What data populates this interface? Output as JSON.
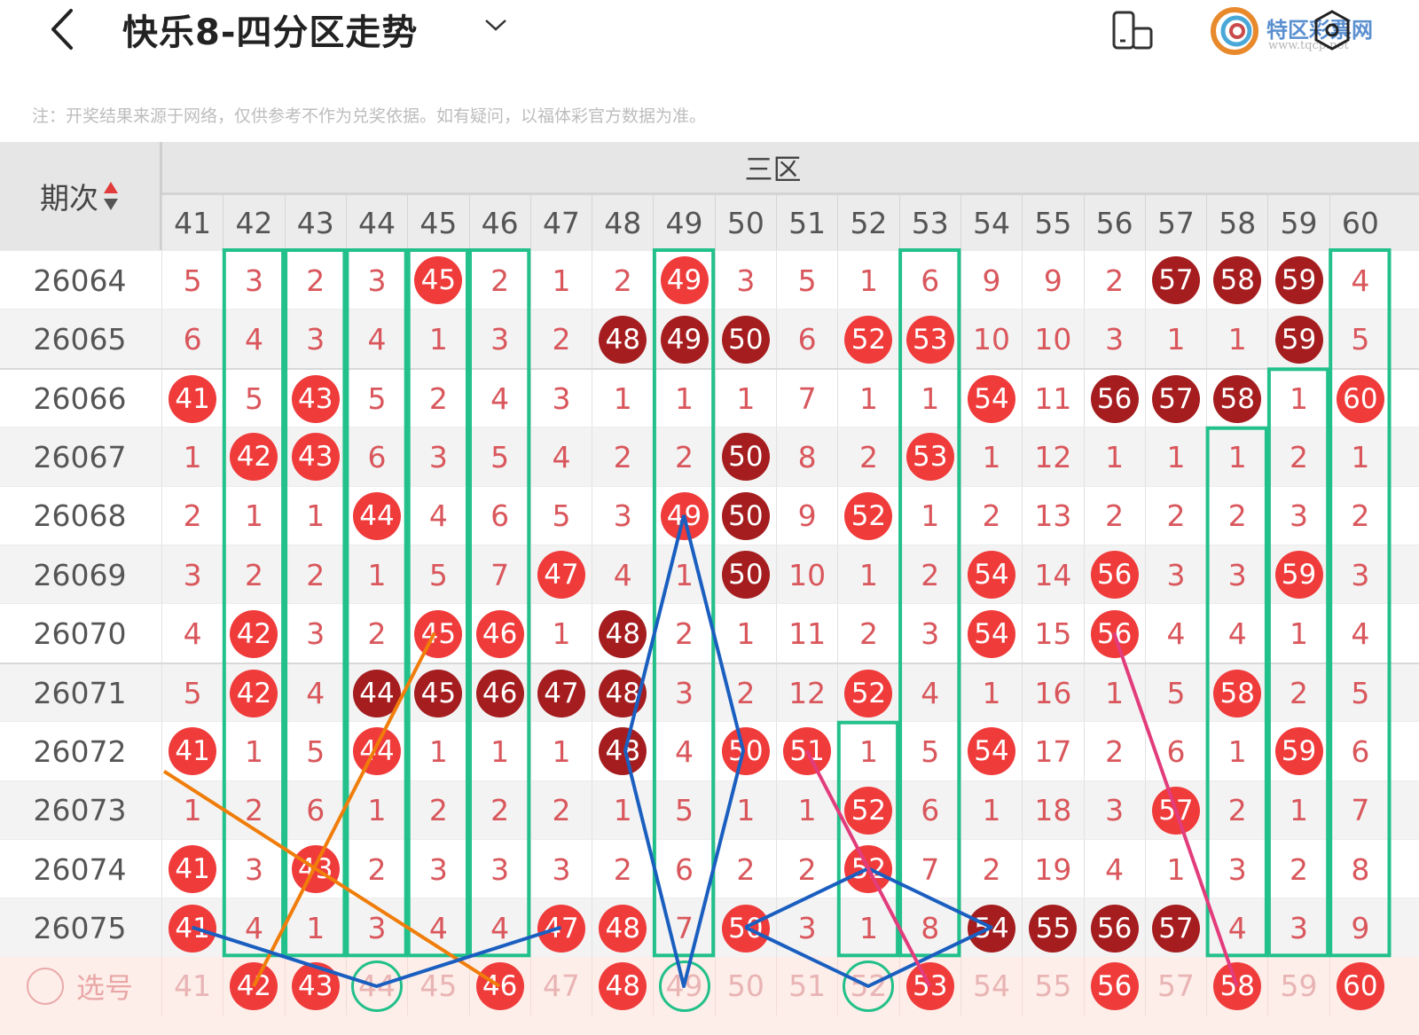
{
  "header": {
    "title": "快乐8-四分区走势",
    "back_icon": "chevron-left-icon",
    "dropdown_icon": "chevron-down-icon",
    "rotate_icon": "screen-rotate-icon",
    "settings_icon": "hexagon-settings-icon",
    "watermark_name": "特区彩票网",
    "watermark_url": "www.tqcp.net"
  },
  "note": "注：开奖结果来源于网络，仅供参考不作为兑奖依据。如有疑问，以福体彩官方数据为准。",
  "table": {
    "issue_header": "期次",
    "zone_header": "三区",
    "columns": [
      41,
      42,
      43,
      44,
      45,
      46,
      47,
      48,
      49,
      50,
      51,
      52,
      53,
      54,
      55,
      56,
      57,
      58,
      59,
      60
    ],
    "rows": [
      {
        "issue": "26064",
        "values": [
          5,
          3,
          2,
          3,
          45,
          2,
          1,
          2,
          49,
          3,
          5,
          1,
          6,
          9,
          9,
          2,
          57,
          58,
          59,
          4
        ],
        "red": [
          45,
          49
        ],
        "dark": [
          57,
          58,
          59
        ]
      },
      {
        "issue": "26065",
        "values": [
          6,
          4,
          3,
          4,
          1,
          3,
          2,
          48,
          49,
          50,
          6,
          52,
          53,
          10,
          10,
          3,
          1,
          1,
          59,
          5
        ],
        "red": [
          52,
          53
        ],
        "dark": [
          48,
          49,
          50,
          59
        ]
      },
      {
        "issue": "26066",
        "values": [
          41,
          5,
          43,
          5,
          2,
          4,
          3,
          1,
          1,
          1,
          7,
          1,
          1,
          54,
          11,
          56,
          57,
          58,
          1,
          60
        ],
        "red": [
          41,
          43,
          54,
          60
        ],
        "dark": [
          56,
          57,
          58
        ]
      },
      {
        "issue": "26067",
        "values": [
          1,
          42,
          43,
          6,
          3,
          5,
          4,
          2,
          2,
          50,
          8,
          2,
          53,
          1,
          12,
          1,
          1,
          1,
          2,
          1
        ],
        "red": [
          42,
          43,
          53
        ],
        "dark": [
          50
        ]
      },
      {
        "issue": "26068",
        "values": [
          2,
          1,
          1,
          44,
          4,
          6,
          5,
          3,
          49,
          50,
          9,
          52,
          1,
          2,
          13,
          2,
          2,
          2,
          3,
          2
        ],
        "red": [
          44,
          49,
          52
        ],
        "dark": [
          50
        ]
      },
      {
        "issue": "26069",
        "values": [
          3,
          2,
          2,
          1,
          5,
          7,
          47,
          4,
          1,
          50,
          10,
          1,
          2,
          54,
          14,
          56,
          3,
          3,
          59,
          3
        ],
        "red": [
          47,
          54,
          56,
          59
        ],
        "dark": [
          50
        ]
      },
      {
        "issue": "26070",
        "values": [
          4,
          42,
          3,
          2,
          45,
          46,
          1,
          48,
          2,
          1,
          11,
          2,
          3,
          54,
          15,
          56,
          4,
          4,
          1,
          4
        ],
        "red": [
          42,
          45,
          46,
          54,
          56
        ],
        "dark": [
          48
        ]
      },
      {
        "issue": "26071",
        "values": [
          5,
          42,
          4,
          44,
          45,
          46,
          47,
          48,
          3,
          2,
          12,
          52,
          4,
          1,
          16,
          1,
          5,
          58,
          2,
          5
        ],
        "red": [
          42,
          52,
          58
        ],
        "dark": [
          44,
          45,
          46,
          47,
          48
        ]
      },
      {
        "issue": "26072",
        "values": [
          41,
          1,
          5,
          44,
          1,
          1,
          1,
          48,
          4,
          50,
          51,
          1,
          5,
          54,
          17,
          2,
          6,
          1,
          59,
          6
        ],
        "red": [
          41,
          44,
          50,
          51,
          54,
          59
        ],
        "dark": [
          48
        ]
      },
      {
        "issue": "26073",
        "values": [
          1,
          2,
          6,
          1,
          2,
          2,
          2,
          1,
          5,
          1,
          1,
          52,
          6,
          1,
          18,
          3,
          57,
          2,
          1,
          7
        ],
        "red": [
          52,
          57
        ],
        "dark": []
      },
      {
        "issue": "26074",
        "values": [
          41,
          3,
          43,
          2,
          3,
          3,
          3,
          2,
          6,
          2,
          2,
          52,
          7,
          2,
          19,
          4,
          1,
          3,
          2,
          8
        ],
        "red": [
          41,
          43,
          52
        ],
        "dark": []
      },
      {
        "issue": "26075",
        "values": [
          41,
          4,
          1,
          3,
          4,
          4,
          47,
          48,
          7,
          50,
          3,
          1,
          8,
          54,
          55,
          56,
          57,
          4,
          3,
          9
        ],
        "red": [
          41,
          47,
          48,
          50
        ],
        "dark": [
          54,
          55,
          56,
          57
        ]
      }
    ],
    "select_row": {
      "label": "选号",
      "selected": [
        42,
        43,
        46,
        48,
        53,
        56,
        58,
        60
      ],
      "circled": [
        44,
        49,
        52
      ]
    },
    "green_boxes": [
      {
        "col": 42,
        "from": "26064",
        "to": "26075"
      },
      {
        "col": 43,
        "from": "26064",
        "to": "26075"
      },
      {
        "col": 44,
        "from": "26064",
        "to": "26075"
      },
      {
        "col": 45,
        "from": "26064",
        "to": "26075"
      },
      {
        "col": 46,
        "from": "26064",
        "to": "26075"
      },
      {
        "col": 49,
        "from": "26064",
        "to": "26075"
      },
      {
        "col": 52,
        "from": "26072",
        "to": "26075"
      },
      {
        "col": 53,
        "from": "26064",
        "to": "26075"
      },
      {
        "col": 58,
        "from": "26067",
        "to": "26075"
      },
      {
        "col": 59,
        "from": "26066",
        "to": "26075"
      },
      {
        "col": 60,
        "from": "26064",
        "to": "26075"
      }
    ]
  },
  "colors": {
    "ball_red": "#f03b3b",
    "ball_dark": "#a51d1f",
    "miss_text": "#d9575c",
    "box_green": "#22c08a",
    "line_orange": "#f07d0a",
    "line_blue": "#1a5fc0",
    "line_pink": "#e23c7c"
  }
}
